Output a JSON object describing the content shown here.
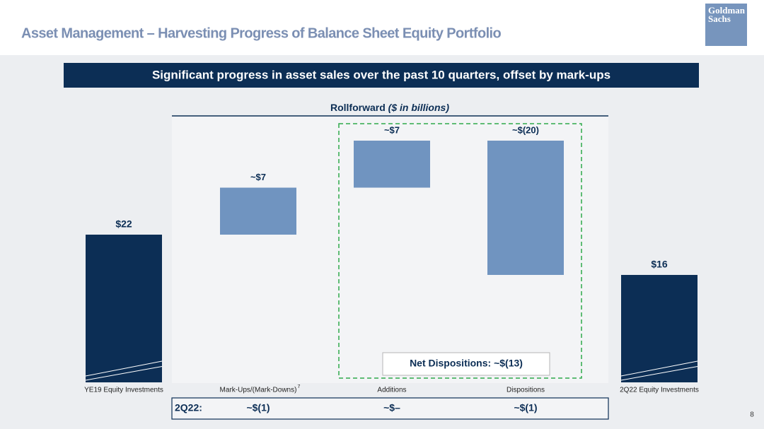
{
  "header": {
    "title": "Asset Management – Harvesting Progress of Balance Sheet Equity Portfolio",
    "logo": [
      "Goldman",
      "Sachs"
    ]
  },
  "banner": "Significant progress in asset sales over the past 10 quarters, offset by mark-ups",
  "chart_data": {
    "type": "waterfall",
    "title": "Rollforward",
    "title_units": "($ in billions)",
    "categories": [
      "YE19 Equity Investments",
      "Mark-Ups/(Mark-Downs)",
      "Additions",
      "Dispositions",
      "2Q22 Equity Investments"
    ],
    "category_notes": [
      null,
      "7",
      null,
      null,
      null
    ],
    "values": [
      22,
      7,
      7,
      -20,
      16
    ],
    "value_labels": [
      "$22",
      "~$7",
      "~$7",
      "~$(20)",
      "$16"
    ],
    "totals": [
      true,
      false,
      false,
      false,
      true
    ],
    "colors": {
      "total": "#0c2e55",
      "change": "#7094c0"
    },
    "ylim": [
      0,
      36
    ],
    "annotation": "Net Dispositions: ~$(13)"
  },
  "quarter_row": {
    "label": "2Q22:",
    "values": [
      "~$(1)",
      "~$–",
      "~$(1)"
    ]
  },
  "page_number": "8"
}
